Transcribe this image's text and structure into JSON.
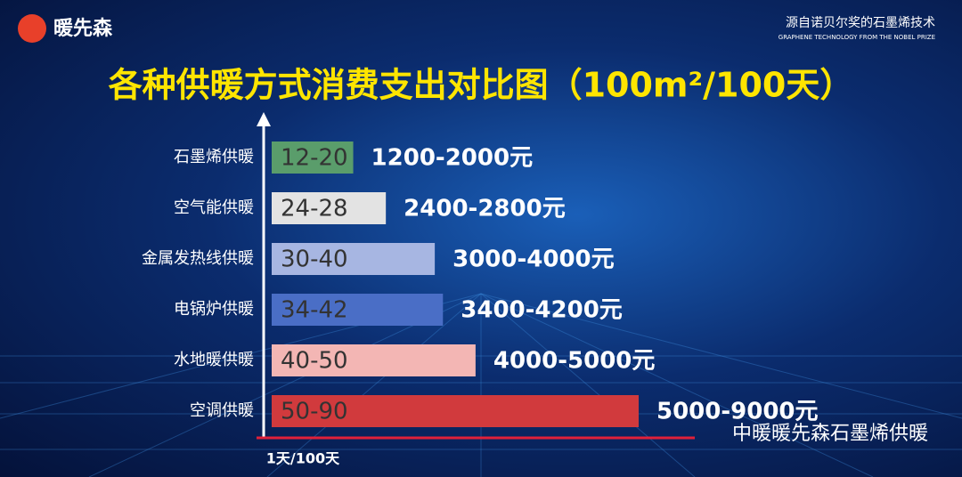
{
  "logo": "暖先森",
  "header": {
    "tagline": "源自诺贝尔奖的石墨烯技术",
    "tagline_en": "GRAPHENE TECHNOLOGY FROM THE NOBEL PRIZE"
  },
  "watermark": "中暖暖先森石墨烯供暖",
  "chart_data": {
    "type": "bar",
    "orientation": "horizontal",
    "title": "各种供暖方式消费支出对比图（100m²/100天）",
    "x_label": "1天/100天",
    "categories": [
      "石墨烯供暖",
      "空气能供暖",
      "金属发热线供暖",
      "电锅炉供暖",
      "水地暖供暖",
      "空调供暖"
    ],
    "ranges": [
      [
        12,
        20
      ],
      [
        24,
        28
      ],
      [
        30,
        40
      ],
      [
        34,
        42
      ],
      [
        40,
        50
      ],
      [
        50,
        90
      ]
    ],
    "value_labels": [
      "12-20",
      "24-28",
      "30-40",
      "34-42",
      "40-50",
      "50-90"
    ],
    "cost_labels": [
      "1200-2000元",
      "2400-2800元",
      "3000-4000元",
      "3400-4200元",
      "4000-5000元",
      "5000-9000元"
    ],
    "colors": [
      "#5a9d6b",
      "#e3e3e3",
      "#a7b6e2",
      "#4a6ec6",
      "#f3b6b4",
      "#d13a3d"
    ]
  }
}
